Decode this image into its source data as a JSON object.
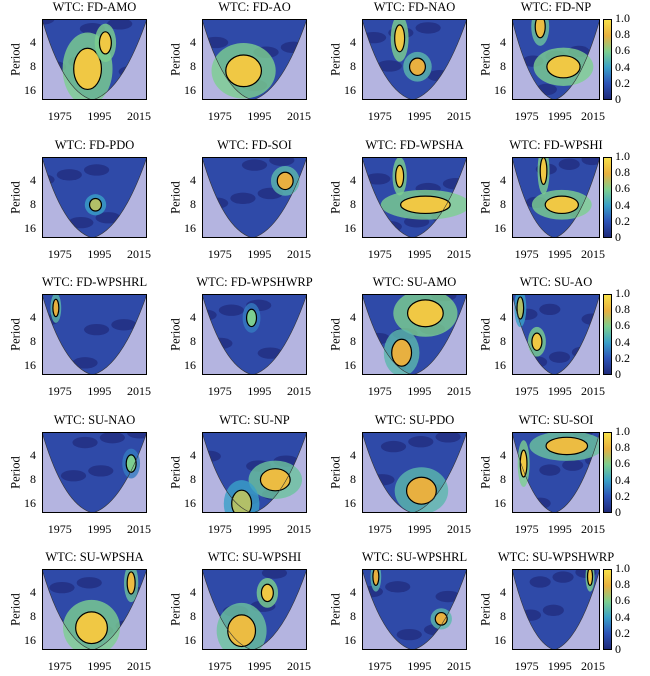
{
  "chart_data": {
    "type": "heatmap",
    "layout": "4 columns x 5 rows",
    "xlabel": "",
    "ylabel": "Period",
    "x_ticks": [
      "1975",
      "1995",
      "2015"
    ],
    "y_ticks": [
      "4",
      "8",
      "16"
    ],
    "xlim": [
      1965,
      2018
    ],
    "ylim": [
      2,
      21
    ],
    "y_scale": "log2",
    "colorbar": {
      "ticks": [
        "1.0",
        "0.8",
        "0.6",
        "0.4",
        "0.2",
        "0"
      ],
      "range": [
        0,
        1
      ]
    },
    "colors": {
      "low": "#1f2a7a",
      "high": "#f8e048",
      "outside_cone": "#b4b4e0"
    },
    "panels": [
      {
        "title": "WTC: FD-AMO",
        "regions": [
          {
            "year": 1988,
            "period": 8.5,
            "span_years": 14,
            "span_octaves": 0.8,
            "coherence": 0.9
          },
          {
            "year": 1997,
            "period": 4,
            "span_years": 6,
            "span_octaves": 0.4,
            "coherence": 0.9
          }
        ]
      },
      {
        "title": "WTC: FD-AO",
        "regions": [
          {
            "year": 1986,
            "period": 9,
            "span_years": 18,
            "span_octaves": 0.6,
            "coherence": 0.9
          }
        ]
      },
      {
        "title": "WTC: FD-NAO",
        "regions": [
          {
            "year": 1984,
            "period": 3.5,
            "span_years": 5,
            "span_octaves": 0.5,
            "coherence": 0.9
          },
          {
            "year": 1993,
            "period": 8,
            "span_years": 8,
            "span_octaves": 0.3,
            "coherence": 0.8
          }
        ]
      },
      {
        "title": "WTC: FD-NP",
        "regions": [
          {
            "year": 1996,
            "period": 8,
            "span_years": 20,
            "span_octaves": 0.4,
            "coherence": 0.9
          },
          {
            "year": 1982,
            "period": 2.5,
            "span_years": 6,
            "span_octaves": 0.4,
            "coherence": 0.85
          }
        ]
      },
      {
        "title": "WTC: FD-PDO",
        "regions": [
          {
            "year": 1992,
            "period": 8,
            "span_years": 6,
            "span_octaves": 0.2,
            "coherence": 0.7
          }
        ]
      },
      {
        "title": "WTC: FD-SOI",
        "regions": [
          {
            "year": 2007,
            "period": 4,
            "span_years": 8,
            "span_octaves": 0.3,
            "coherence": 0.8
          }
        ]
      },
      {
        "title": "WTC: FD-WPSHA",
        "regions": [
          {
            "year": 1984,
            "period": 3.5,
            "span_years": 4,
            "span_octaves": 0.4,
            "coherence": 0.9
          },
          {
            "year": 1997,
            "period": 8,
            "span_years": 25,
            "span_octaves": 0.3,
            "coherence": 0.9
          }
        ]
      },
      {
        "title": "WTC: FD-WPSHI",
        "regions": [
          {
            "year": 1984,
            "period": 3,
            "span_years": 4,
            "span_octaves": 0.5,
            "coherence": 0.9
          },
          {
            "year": 1995,
            "period": 8,
            "span_years": 20,
            "span_octaves": 0.3,
            "coherence": 0.9
          }
        ]
      },
      {
        "title": "WTC: FD-WPSHRL",
        "regions": [
          {
            "year": 1972,
            "period": 3,
            "span_years": 3,
            "span_octaves": 0.3,
            "coherence": 0.8
          }
        ]
      },
      {
        "title": "WTC: FD-WPSHWRP",
        "regions": [
          {
            "year": 1990,
            "period": 4,
            "span_years": 5,
            "span_octaves": 0.3,
            "coherence": 0.6
          }
        ]
      },
      {
        "title": "WTC: SU-AMO",
        "regions": [
          {
            "year": 1997,
            "period": 3.5,
            "span_years": 18,
            "span_octaves": 0.5,
            "coherence": 0.9
          },
          {
            "year": 1985,
            "period": 11,
            "span_years": 10,
            "span_octaves": 0.5,
            "coherence": 0.8
          }
        ]
      },
      {
        "title": "WTC: SU-AO",
        "regions": [
          {
            "year": 1980,
            "period": 8,
            "span_years": 6,
            "span_octaves": 0.3,
            "coherence": 0.9
          },
          {
            "year": 1970,
            "period": 3,
            "span_years": 4,
            "span_octaves": 0.4,
            "coherence": 0.7
          }
        ]
      },
      {
        "title": "WTC: SU-NAO",
        "regions": [
          {
            "year": 2010,
            "period": 5,
            "span_years": 5,
            "span_octaves": 0.3,
            "coherence": 0.6
          }
        ]
      },
      {
        "title": "WTC: SU-NP",
        "regions": [
          {
            "year": 2002,
            "period": 8,
            "span_years": 15,
            "span_octaves": 0.4,
            "coherence": 0.85
          },
          {
            "year": 1985,
            "period": 16,
            "span_years": 10,
            "span_octaves": 0.5,
            "coherence": 0.7
          }
        ]
      },
      {
        "title": "WTC: SU-PDO",
        "regions": [
          {
            "year": 1995,
            "period": 11,
            "span_years": 15,
            "span_octaves": 0.5,
            "coherence": 0.8
          }
        ]
      },
      {
        "title": "WTC: SU-SOI",
        "regions": [
          {
            "year": 1972,
            "period": 5,
            "span_years": 4,
            "span_octaves": 0.5,
            "coherence": 0.9
          },
          {
            "year": 1998,
            "period": 3,
            "span_years": 25,
            "span_octaves": 0.3,
            "coherence": 0.85
          }
        ]
      },
      {
        "title": "WTC: SU-WPSHA",
        "regions": [
          {
            "year": 1990,
            "period": 11,
            "span_years": 16,
            "span_octaves": 0.6,
            "coherence": 0.9
          },
          {
            "year": 2010,
            "period": 3,
            "span_years": 4,
            "span_octaves": 0.4,
            "coherence": 0.85
          }
        ]
      },
      {
        "title": "WTC: SU-WPSHI",
        "regions": [
          {
            "year": 1998,
            "period": 4,
            "span_years": 6,
            "span_octaves": 0.3,
            "coherence": 0.9
          },
          {
            "year": 1985,
            "period": 12,
            "span_years": 14,
            "span_octaves": 0.6,
            "coherence": 0.85
          }
        ]
      },
      {
        "title": "WTC: SU-WPSHRL",
        "regions": [
          {
            "year": 1972,
            "period": 2.5,
            "span_years": 3,
            "span_octaves": 0.3,
            "coherence": 0.8
          },
          {
            "year": 2005,
            "period": 8.5,
            "span_years": 6,
            "span_octaves": 0.2,
            "coherence": 0.8
          }
        ]
      },
      {
        "title": "WTC: SU-WPSHWRP",
        "regions": [
          {
            "year": 2012,
            "period": 2.5,
            "span_years": 3,
            "span_octaves": 0.3,
            "coherence": 0.9
          }
        ]
      }
    ]
  }
}
